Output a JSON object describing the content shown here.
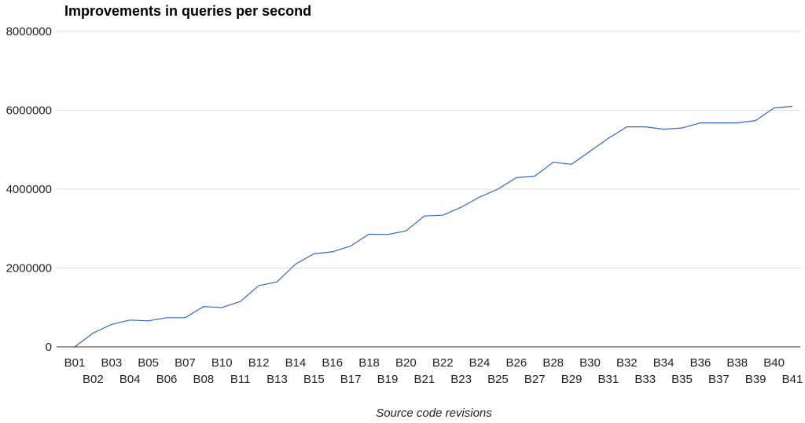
{
  "chart_data": {
    "type": "line",
    "title": "Improvements in queries per second",
    "xlabel": "Source code revisions",
    "ylabel": "",
    "ylim": [
      0,
      8000000
    ],
    "yticks": [
      "0",
      "2000000",
      "4000000",
      "6000000",
      "8000000"
    ],
    "grid": true,
    "legend": "none",
    "categories": [
      "B01",
      "B02",
      "B03",
      "B04",
      "B05",
      "B06",
      "B07",
      "B08",
      "B10",
      "B11",
      "B12",
      "B13",
      "B14",
      "B15",
      "B16",
      "B17",
      "B18",
      "B19",
      "B20",
      "B21",
      "B22",
      "B23",
      "B24",
      "B25",
      "B26",
      "B27",
      "B28",
      "B29",
      "B30",
      "B31",
      "B32",
      "B33",
      "B34",
      "B35",
      "B36",
      "B37",
      "B38",
      "B39",
      "B40",
      "B41"
    ],
    "series": [
      {
        "values": [
          0,
          350000,
          570000,
          680000,
          660000,
          740000,
          740000,
          1020000,
          1000000,
          1150000,
          1550000,
          1650000,
          2100000,
          2360000,
          2410000,
          2560000,
          2860000,
          2850000,
          2940000,
          3320000,
          3340000,
          3540000,
          3800000,
          4000000,
          4290000,
          4330000,
          4680000,
          4630000,
          4960000,
          5290000,
          5580000,
          5580000,
          5520000,
          5550000,
          5680000,
          5680000,
          5680000,
          5740000,
          6060000,
          6100000
        ]
      }
    ],
    "colors": {
      "line": "#3366cc",
      "grid": "#dddddd",
      "axis": "#333333"
    }
  }
}
